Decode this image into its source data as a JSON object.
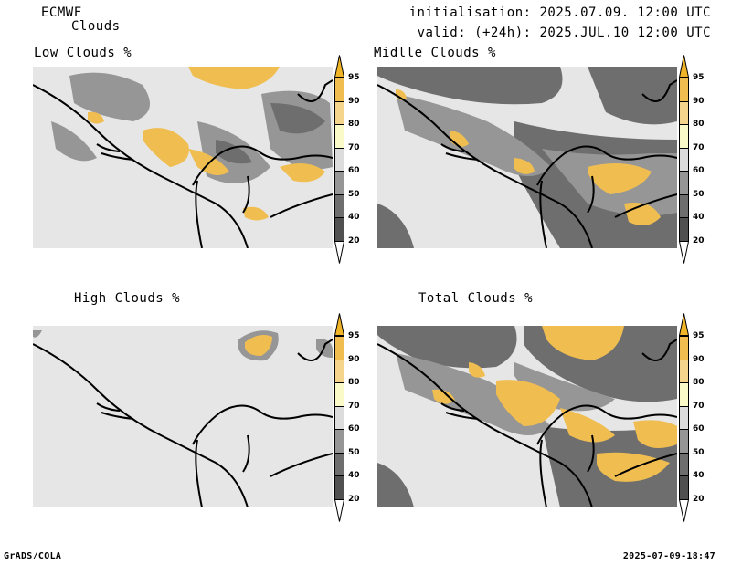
{
  "header": {
    "model": "ECMWF",
    "product": "Clouds",
    "initialisation": "initialisation: 2025.07.09. 12:00 UTC",
    "valid": "valid: (+24h): 2025.JUL.10 12:00 UTC"
  },
  "panels": [
    {
      "title": "Low Clouds %"
    },
    {
      "title": "Midlle Clouds %"
    },
    {
      "title": "High Clouds %"
    },
    {
      "title": "Total Clouds %"
    }
  ],
  "colorbar": {
    "levels": [
      "20",
      "40",
      "50",
      "60",
      "70",
      "80",
      "90",
      "95"
    ],
    "colors": {
      "lt20": "#ffffff",
      "20_40": "#505050",
      "40_50": "#6e6e6e",
      "50_60": "#969696",
      "60_70": "#dcdcdc",
      "70_80": "#fafac8",
      "80_90": "#f5d58c",
      "90_95": "#f0be50",
      "gt95": "#f0b428"
    }
  },
  "footer": {
    "left": "GrADS/COLA",
    "right": "2025-07-09-18:47"
  }
}
